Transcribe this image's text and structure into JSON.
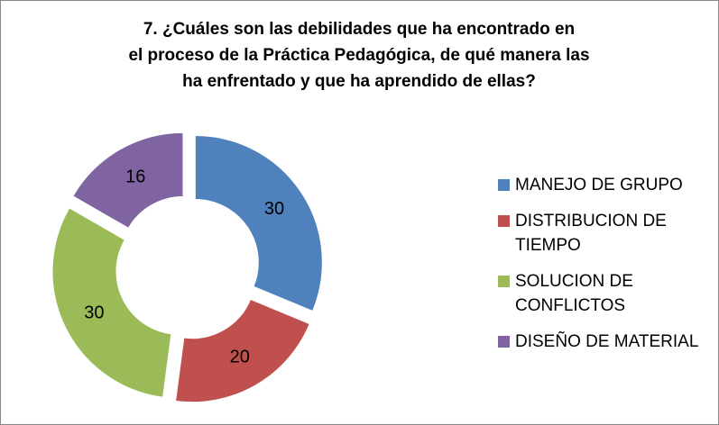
{
  "chart_data": {
    "type": "donut",
    "title": [
      "7.  ¿Cuáles son las debilidades  que ha encontrado en",
      "el  proceso de la Práctica Pedagógica, de qué manera las",
      "ha enfrentado y que ha aprendido de ellas?"
    ],
    "categories": [
      "MANEJO DE GRUPO",
      "DISTRIBUCION DE TIEMPO",
      "SOLUCION DE CONFLICTOS",
      "DISEÑO DE MATERIAL"
    ],
    "values": [
      30,
      20,
      30,
      16
    ],
    "colors": [
      "#4f81bd",
      "#c0504d",
      "#9bbb59",
      "#8064a2"
    ],
    "legend": "right"
  }
}
